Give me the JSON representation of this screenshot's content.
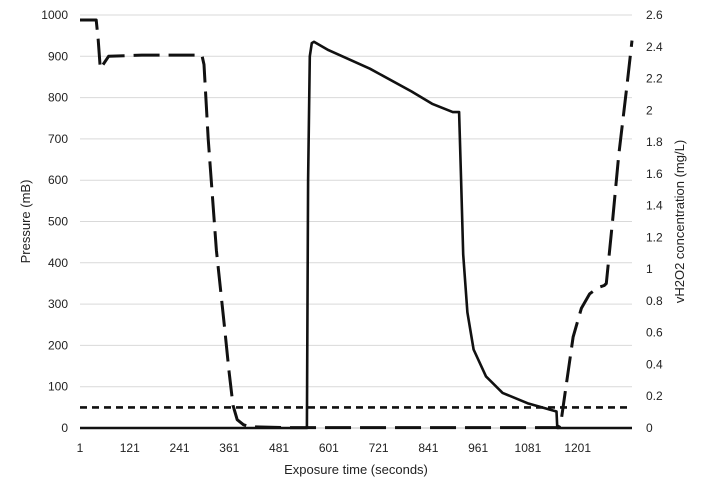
{
  "chart_data": {
    "type": "line",
    "title": "",
    "xlabel": "Exposure time (seconds)",
    "ylabel_left": "Pressure (mB)",
    "ylabel_right": "vH2O2 concentration (mg/L)",
    "x_ticks": [
      1,
      121,
      241,
      361,
      481,
      601,
      721,
      841,
      961,
      1081,
      1201
    ],
    "xlim": [
      1,
      1332
    ],
    "ylim_left": [
      0,
      1000
    ],
    "y_ticks_left": [
      0,
      100,
      200,
      300,
      400,
      500,
      600,
      700,
      800,
      900,
      1000
    ],
    "ylim_right": [
      0,
      2.6
    ],
    "y_ticks_right": [
      "0",
      "0.2",
      "0.4",
      "0.6",
      "0.8",
      "1",
      "1.2",
      "1.4",
      "1.6",
      "1.8",
      "2",
      "2.2",
      "2.4",
      "2.6"
    ],
    "grid": "horizontal",
    "legend": "none",
    "colors": {
      "line": "#111111",
      "grid": "#d9d9d9"
    },
    "series": [
      {
        "style": "dashed-long",
        "axis": "left",
        "x": [
          1,
          40,
          45,
          50,
          70,
          150,
          250,
          295,
          300,
          310,
          330,
          350,
          360,
          370,
          380,
          395,
          410,
          500,
          1000,
          1155,
          1160,
          1170,
          1190,
          1210,
          1230,
          1250,
          1265,
          1270,
          1285,
          1300,
          1320,
          1332
        ],
        "y": [
          988,
          988,
          940,
          870,
          900,
          903,
          903,
          903,
          880,
          700,
          430,
          240,
          140,
          55,
          20,
          8,
          3,
          1,
          1,
          1,
          10,
          80,
          220,
          290,
          325,
          340,
          345,
          350,
          500,
          660,
          830,
          938
        ]
      },
      {
        "style": "solid",
        "axis": "left",
        "x": [
          1,
          548,
          551,
          555,
          560,
          565,
          600,
          700,
          800,
          850,
          900,
          915,
          920,
          925,
          935,
          950,
          980,
          1020,
          1080,
          1150,
          1152,
          1332
        ],
        "y": [
          0,
          0,
          600,
          900,
          932,
          935,
          915,
          870,
          815,
          785,
          765,
          765,
          600,
          420,
          280,
          190,
          125,
          85,
          60,
          40,
          0,
          0
        ]
      },
      {
        "style": "dashed-short",
        "axis": "left",
        "x": [
          1,
          1332
        ],
        "y": [
          50,
          50
        ]
      }
    ]
  }
}
